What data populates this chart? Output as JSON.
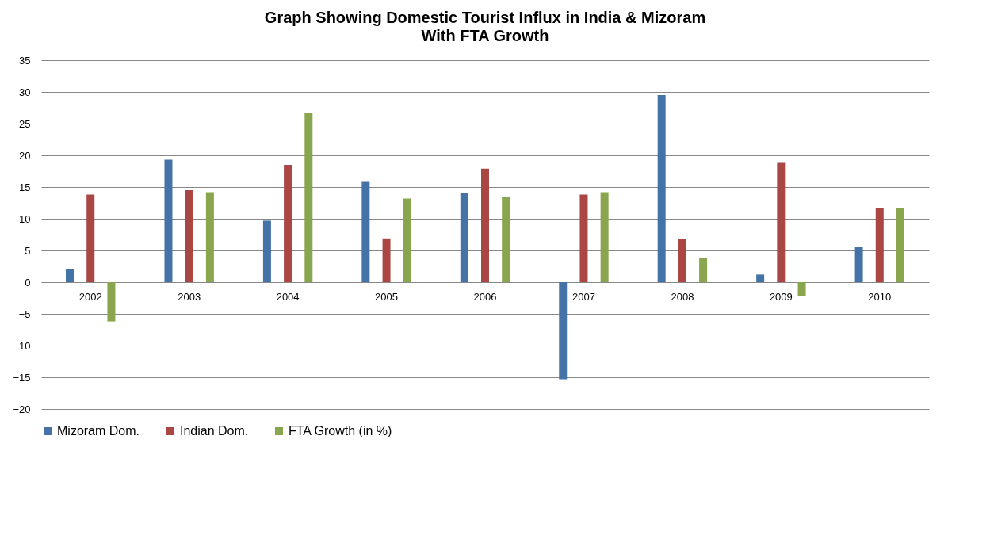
{
  "chart_data": {
    "type": "bar",
    "title": "Graph Showing Domestic Tourist Influx in India & Mizoram",
    "subtitle": "With FTA Growth",
    "categories": [
      "2002",
      "2003",
      "2004",
      "2005",
      "2006",
      "2007",
      "2008",
      "2009",
      "2010"
    ],
    "series": [
      {
        "name": "Mizoram Dom.",
        "color": "#4573a7",
        "values": [
          2.1,
          19.3,
          9.7,
          15.8,
          14.0,
          -15.3,
          29.5,
          1.2,
          5.5
        ]
      },
      {
        "name": "Indian Dom.",
        "color": "#aa4643",
        "values": [
          13.8,
          14.5,
          18.5,
          6.9,
          17.9,
          13.8,
          6.8,
          18.8,
          11.7
        ]
      },
      {
        "name": "FTA Growth (in %)",
        "color": "#89a54e",
        "values": [
          -6.2,
          14.2,
          26.7,
          13.2,
          13.4,
          14.2,
          3.8,
          -2.2,
          11.7
        ]
      }
    ],
    "ylim": [
      -20,
      35
    ],
    "yticks": [
      -20,
      -15,
      -10,
      -5,
      0,
      5,
      10,
      15,
      20,
      25,
      30,
      35
    ],
    "grid": "y",
    "legend": "bottom"
  }
}
